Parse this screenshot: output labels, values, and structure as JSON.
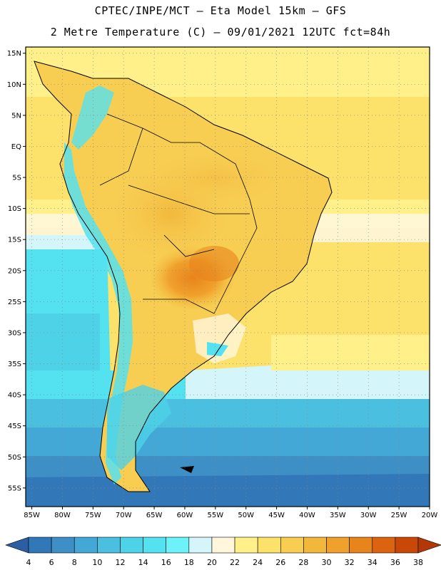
{
  "header": {
    "title_line1": "CPTEC/INPE/MCT –  Eta Model 15km – GFS",
    "title_line2": "2 Metre Temperature (C) – 09/01/2021 12UTC fct=84h"
  },
  "map": {
    "lon_range": [
      -86,
      -20
    ],
    "lat_range": [
      16,
      -58
    ],
    "lat_ticks": [
      {
        "value": 15,
        "label": "15N"
      },
      {
        "value": 10,
        "label": "10N"
      },
      {
        "value": 5,
        "label": "5N"
      },
      {
        "value": 0,
        "label": "EQ"
      },
      {
        "value": -5,
        "label": "5S"
      },
      {
        "value": -10,
        "label": "10S"
      },
      {
        "value": -15,
        "label": "15S"
      },
      {
        "value": -20,
        "label": "20S"
      },
      {
        "value": -25,
        "label": "25S"
      },
      {
        "value": -30,
        "label": "30S"
      },
      {
        "value": -35,
        "label": "35S"
      },
      {
        "value": -40,
        "label": "40S"
      },
      {
        "value": -45,
        "label": "45S"
      },
      {
        "value": -50,
        "label": "50S"
      },
      {
        "value": -55,
        "label": "55S"
      }
    ],
    "lon_ticks": [
      {
        "value": -85,
        "label": "85W"
      },
      {
        "value": -80,
        "label": "80W"
      },
      {
        "value": -75,
        "label": "75W"
      },
      {
        "value": -70,
        "label": "70W"
      },
      {
        "value": -65,
        "label": "65W"
      },
      {
        "value": -60,
        "label": "60W"
      },
      {
        "value": -55,
        "label": "55W"
      },
      {
        "value": -50,
        "label": "50W"
      },
      {
        "value": -45,
        "label": "45W"
      },
      {
        "value": -40,
        "label": "40W"
      },
      {
        "value": -35,
        "label": "35W"
      },
      {
        "value": -30,
        "label": "30W"
      },
      {
        "value": -25,
        "label": "25W"
      },
      {
        "value": -20,
        "label": "20W"
      }
    ]
  },
  "colorbar": {
    "levels": [
      "4",
      "6",
      "8",
      "10",
      "12",
      "14",
      "16",
      "18",
      "20",
      "22",
      "24",
      "26",
      "28",
      "30",
      "32",
      "34",
      "36",
      "38"
    ],
    "colors": [
      "#2b5ea3",
      "#3277b8",
      "#3d8fc6",
      "#44a8d6",
      "#4bbfe0",
      "#4dd2e8",
      "#55e2f0",
      "#6cf2f8",
      "#d4f6fb",
      "#fff6dc",
      "#fff08a",
      "#fce16a",
      "#f7cd52",
      "#f2b83c",
      "#f0a02c",
      "#e8841c",
      "#dc6410",
      "#c84808",
      "#b23808"
    ]
  }
}
